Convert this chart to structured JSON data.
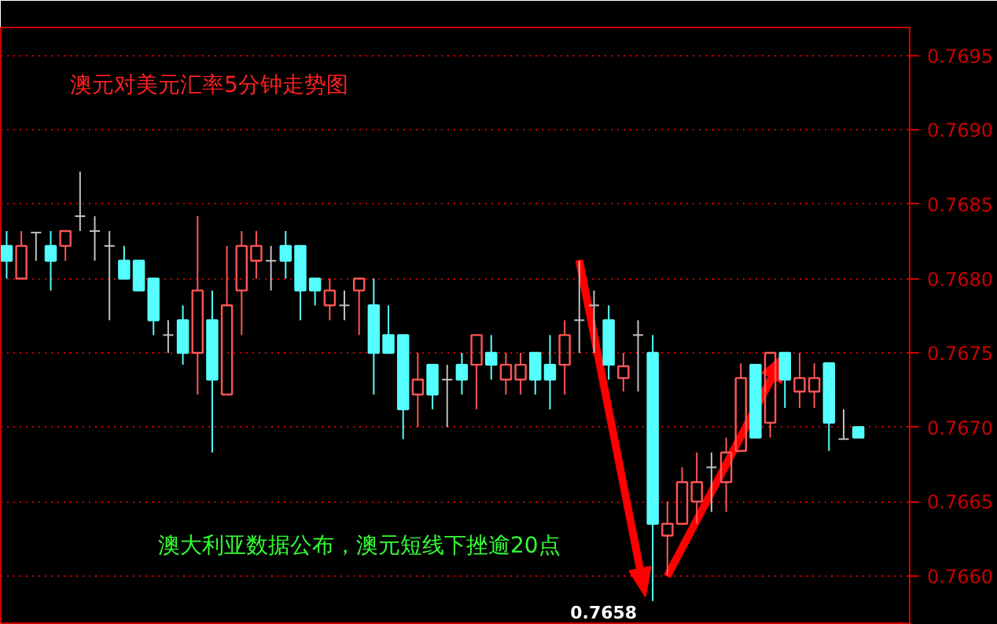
{
  "chart_data": {
    "type": "candlestick",
    "title": "澳元对美元汇率5分钟走势图",
    "annotations": [
      "澳大利亚数据公布，澳元短线下挫逾20点",
      "0.7658"
    ],
    "categories": [
      null,
      null,
      null,
      null,
      null,
      null,
      null,
      null,
      null,
      null,
      null,
      null,
      null,
      null,
      null,
      null,
      null,
      null,
      null,
      null,
      null,
      null,
      null,
      null,
      null,
      null,
      null,
      null,
      null,
      null,
      null,
      null,
      null,
      null,
      null,
      null,
      null,
      null,
      null,
      null,
      null,
      null,
      null,
      null,
      null,
      null,
      null,
      null,
      null,
      null,
      null,
      null,
      null,
      null,
      null,
      null,
      null,
      null,
      null
    ],
    "ohlc": [
      [
        0.76822,
        0.76832,
        0.768,
        0.76812
      ],
      [
        0.768,
        0.76832,
        0.768,
        0.76822
      ],
      [
        0.76831,
        0.76831,
        0.76812,
        0.76831
      ],
      [
        0.76822,
        0.76832,
        0.76792,
        0.76812
      ],
      [
        0.76822,
        0.76832,
        0.76812,
        0.76832
      ],
      [
        0.76842,
        0.76872,
        0.76832,
        0.76842
      ],
      [
        0.76832,
        0.76842,
        0.76812,
        0.76832
      ],
      [
        0.76822,
        0.76832,
        0.76772,
        0.76822
      ],
      [
        0.76812,
        0.76822,
        0.768,
        0.768
      ],
      [
        0.76812,
        0.76812,
        0.76792,
        0.76792
      ],
      [
        0.768,
        0.768,
        0.76762,
        0.76772
      ],
      [
        0.76762,
        0.76772,
        0.7675,
        0.76762
      ],
      [
        0.76772,
        0.76782,
        0.76742,
        0.7675
      ],
      [
        0.7675,
        0.76842,
        0.76722,
        0.76792
      ],
      [
        0.76772,
        0.76792,
        0.76683,
        0.76732
      ],
      [
        0.76722,
        0.76822,
        0.76722,
        0.76782
      ],
      [
        0.76792,
        0.76832,
        0.76762,
        0.76822
      ],
      [
        0.76812,
        0.76832,
        0.768,
        0.76822
      ],
      [
        0.76812,
        0.76822,
        0.76792,
        0.76812
      ],
      [
        0.76822,
        0.76832,
        0.768,
        0.76812
      ],
      [
        0.76822,
        0.76822,
        0.76772,
        0.76792
      ],
      [
        0.768,
        0.768,
        0.76782,
        0.76792
      ],
      [
        0.76782,
        0.768,
        0.76772,
        0.76792
      ],
      [
        0.76782,
        0.76792,
        0.76772,
        0.76782
      ],
      [
        0.76792,
        0.768,
        0.76762,
        0.768
      ],
      [
        0.76782,
        0.768,
        0.76722,
        0.7675
      ],
      [
        0.76762,
        0.76782,
        0.7675,
        0.7675
      ],
      [
        0.76762,
        0.76762,
        0.76692,
        0.76712
      ],
      [
        0.76722,
        0.7675,
        0.767,
        0.76732
      ],
      [
        0.76742,
        0.76742,
        0.76712,
        0.76722
      ],
      [
        0.76732,
        0.76742,
        0.767,
        0.76732
      ],
      [
        0.76742,
        0.7675,
        0.76722,
        0.76732
      ],
      [
        0.76742,
        0.76762,
        0.76712,
        0.76762
      ],
      [
        0.7675,
        0.76762,
        0.76732,
        0.76742
      ],
      [
        0.76732,
        0.7675,
        0.76722,
        0.76742
      ],
      [
        0.76732,
        0.7675,
        0.76722,
        0.76742
      ],
      [
        0.7675,
        0.7675,
        0.76722,
        0.76732
      ],
      [
        0.76742,
        0.76762,
        0.76712,
        0.76732
      ],
      [
        0.76742,
        0.76772,
        0.76722,
        0.76762
      ],
      [
        0.76772,
        0.76812,
        0.7675,
        0.76772
      ],
      [
        0.76782,
        0.76792,
        0.7675,
        0.76782
      ],
      [
        0.76772,
        0.76782,
        0.76732,
        0.76742
      ],
      [
        0.76733,
        0.7675,
        0.76724,
        0.76741
      ],
      [
        0.76762,
        0.76772,
        0.76724,
        0.76762
      ],
      [
        0.7675,
        0.76762,
        0.76583,
        0.76635
      ],
      [
        0.76627,
        0.7665,
        0.766,
        0.76635
      ],
      [
        0.76635,
        0.76673,
        0.76635,
        0.76663
      ],
      [
        0.7665,
        0.76683,
        0.76635,
        0.76663
      ],
      [
        0.76673,
        0.76683,
        0.76643,
        0.76673
      ],
      [
        0.76663,
        0.76693,
        0.76643,
        0.76683
      ],
      [
        0.76684,
        0.76743,
        0.76684,
        0.76733
      ],
      [
        0.76742,
        0.76742,
        0.76693,
        0.76693
      ],
      [
        0.76703,
        0.7675,
        0.76693,
        0.7675
      ],
      [
        0.7675,
        0.7675,
        0.76713,
        0.76732
      ],
      [
        0.76724,
        0.7675,
        0.76713,
        0.76733
      ],
      [
        0.76724,
        0.76743,
        0.76713,
        0.76733
      ],
      [
        0.76743,
        0.76743,
        0.76684,
        0.76703
      ],
      [
        0.76692,
        0.76712,
        0.76692,
        0.76692
      ],
      [
        0.767,
        0.767,
        0.76693,
        0.76693
      ]
    ],
    "ylim": [
      0.76567,
      0.76969
    ],
    "yticks": [
      {
        "value": 0.766,
        "label": "0.7660"
      },
      0.7665,
      {
        "value": 0.767,
        "label": "0.7670"
      },
      0.7675,
      {
        "value": 0.768,
        "label": "0.7680"
      },
      0.7685,
      {
        "value": 0.769,
        "label": "0.7690"
      },
      0.7695
    ],
    "grid": "y"
  }
}
